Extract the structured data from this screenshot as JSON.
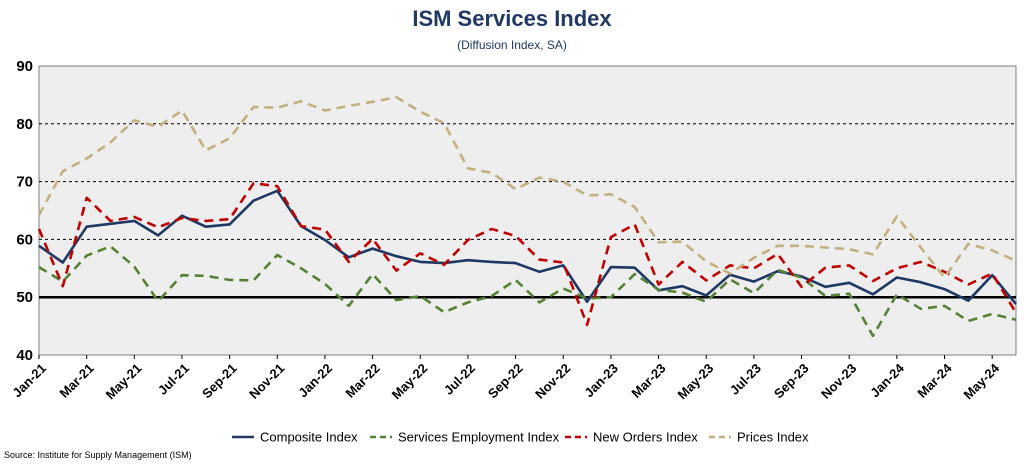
{
  "chart_data": {
    "type": "line",
    "title": "ISM Services Index",
    "subtitle": "(Diffusion Index, SA)",
    "source": "Source: Institute for Supply Management (ISM)",
    "xlabel": "",
    "ylabel": "",
    "ylim": [
      40,
      90
    ],
    "yticks": [
      40,
      50,
      60,
      70,
      80,
      90
    ],
    "grid": "horizontal dashed",
    "reference_line": 50,
    "legend": "bottom",
    "x": [
      "Jan-21",
      "Feb-21",
      "Mar-21",
      "Apr-21",
      "May-21",
      "Jun-21",
      "Jul-21",
      "Aug-21",
      "Sep-21",
      "Oct-21",
      "Nov-21",
      "Dec-21",
      "Jan-22",
      "Feb-22",
      "Mar-22",
      "Apr-22",
      "May-22",
      "Jun-22",
      "Jul-22",
      "Aug-22",
      "Sep-22",
      "Oct-22",
      "Nov-22",
      "Dec-22",
      "Jan-23",
      "Feb-23",
      "Mar-23",
      "Apr-23",
      "May-23",
      "Jun-23",
      "Jul-23",
      "Aug-23",
      "Sep-23",
      "Oct-23",
      "Nov-23",
      "Dec-23",
      "Jan-24",
      "Feb-24",
      "Mar-24",
      "Apr-24",
      "May-24",
      "Jun-24"
    ],
    "xticklabels": [
      "Jan-21",
      "Mar-21",
      "May-21",
      "Jul-21",
      "Sep-21",
      "Nov-21",
      "Jan-22",
      "Mar-22",
      "May-22",
      "Jul-22",
      "Sep-22",
      "Nov-22",
      "Jan-23",
      "Mar-23",
      "May-23",
      "Jul-23",
      "Sep-23",
      "Nov-23",
      "Jan-24",
      "Mar-24",
      "May-24"
    ],
    "series": [
      {
        "name": "Composite Index",
        "color": "#1f3864",
        "dash": "solid",
        "values": [
          58.9,
          56.0,
          62.2,
          62.7,
          63.2,
          60.7,
          64.1,
          62.2,
          62.6,
          66.7,
          68.4,
          62.3,
          59.9,
          56.9,
          58.4,
          57.1,
          56.1,
          55.9,
          56.4,
          56.1,
          55.9,
          54.4,
          55.5,
          49.2,
          55.2,
          55.1,
          51.2,
          51.9,
          50.3,
          53.9,
          52.7,
          54.5,
          53.6,
          51.8,
          52.5,
          50.5,
          53.4,
          52.6,
          51.4,
          49.4,
          53.8,
          48.8
        ]
      },
      {
        "name": "Services Employment Index",
        "color": "#548235",
        "dash": "dashed",
        "values": [
          55.2,
          52.7,
          57.2,
          58.8,
          55.3,
          49.3,
          53.8,
          53.7,
          53.0,
          52.9,
          57.3,
          55.0,
          52.3,
          48.5,
          54.0,
          49.5,
          50.2,
          47.4,
          49.1,
          50.2,
          53.0,
          49.1,
          51.5,
          49.8,
          50.0,
          54.0,
          51.3,
          50.8,
          49.2,
          53.1,
          50.7,
          54.7,
          53.4,
          50.2,
          50.6,
          43.3,
          50.5,
          48.0,
          48.5,
          45.9,
          47.1,
          46.1
        ]
      },
      {
        "name": "New Orders Index",
        "color": "#c00000",
        "dash": "dashed",
        "values": [
          61.8,
          51.9,
          67.2,
          63.2,
          63.9,
          62.1,
          63.7,
          63.2,
          63.5,
          69.7,
          69.2,
          62.3,
          61.7,
          56.1,
          60.1,
          54.6,
          57.6,
          55.6,
          59.9,
          61.8,
          60.6,
          56.5,
          56.0,
          45.2,
          60.4,
          62.6,
          52.2,
          56.1,
          52.9,
          55.5,
          55.0,
          57.5,
          51.8,
          55.1,
          55.5,
          52.8,
          55.0,
          56.1,
          54.4,
          52.2,
          54.1,
          47.3
        ]
      },
      {
        "name": "Prices Index",
        "color": "#c4b07e",
        "dash": "dashed",
        "values": [
          64.2,
          71.8,
          74.0,
          76.8,
          80.6,
          79.5,
          82.3,
          75.4,
          77.5,
          82.9,
          82.8,
          83.9,
          82.3,
          83.1,
          83.8,
          84.6,
          82.1,
          80.1,
          72.3,
          71.5,
          68.7,
          70.7,
          70.0,
          67.6,
          67.8,
          65.6,
          59.5,
          59.6,
          56.2,
          54.1,
          56.8,
          58.9,
          58.9,
          58.6,
          58.3,
          57.4,
          64.0,
          58.6,
          53.4,
          59.2,
          58.1,
          56.3
        ]
      }
    ]
  }
}
